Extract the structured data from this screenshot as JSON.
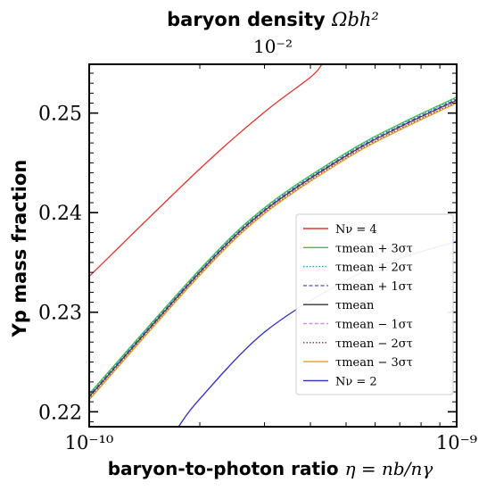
{
  "chart_data": {
    "type": "line",
    "top_title_text": "baryon density",
    "top_title_symbol": "Ωbh²",
    "top_axis_exponent": "10⁻²",
    "xlabel_text": "baryon-to-photon ratio",
    "xlabel_symbol": "η = nb/nγ",
    "ylabel": "Yp mass fraction",
    "x_scale": "log",
    "xlim": [
      1e-10,
      1e-09
    ],
    "ylim": [
      0.2185,
      0.2549
    ],
    "x_tick_labels": [
      {
        "value": 1e-10,
        "label": "10⁻¹⁰"
      },
      {
        "value": 1e-09,
        "label": "10⁻⁹"
      }
    ],
    "y_ticks": [
      0.22,
      0.23,
      0.24,
      0.25
    ],
    "y_tick_labels": [
      "0.22",
      "0.23",
      "0.24",
      "0.25"
    ],
    "legend_position": "lower-right",
    "series": [
      {
        "name": "Nν = 4",
        "color": "#e8312a",
        "dash": "solid",
        "x": [
          1e-10,
          2e-10,
          3e-10,
          4e-10,
          4.3e-10
        ],
        "y": [
          0.2336,
          0.2444,
          0.2501,
          0.2536,
          0.2549
        ]
      },
      {
        "name": "τmean + 3στ",
        "color": "#3cc23c",
        "dash": "solid",
        "x": [
          1e-10,
          2e-10,
          3e-10,
          5e-10,
          7e-10,
          1e-09
        ],
        "y": [
          0.2218,
          0.2343,
          0.2405,
          0.246,
          0.2489,
          0.2516
        ]
      },
      {
        "name": "τmean + 2στ",
        "color": "#1e9bd7",
        "dash": "dotted",
        "x": [
          1e-10,
          2e-10,
          3e-10,
          5e-10,
          7e-10,
          1e-09
        ],
        "y": [
          0.2217,
          0.2342,
          0.2404,
          0.2459,
          0.2488,
          0.2515
        ]
      },
      {
        "name": "τmean + 1στ",
        "color": "#6a5acd",
        "dash": "dashed",
        "x": [
          1e-10,
          2e-10,
          3e-10,
          5e-10,
          7e-10,
          1e-09
        ],
        "y": [
          0.2216,
          0.2341,
          0.2403,
          0.2458,
          0.2487,
          0.2514
        ]
      },
      {
        "name": "τmean",
        "color": "#333333",
        "dash": "solid",
        "x": [
          1e-10,
          2e-10,
          3e-10,
          5e-10,
          7e-10,
          1e-09
        ],
        "y": [
          0.2215,
          0.234,
          0.2402,
          0.2457,
          0.2486,
          0.2513
        ]
      },
      {
        "name": "τmean − 1στ",
        "color": "#dd88dd",
        "dash": "dashed",
        "x": [
          1e-10,
          2e-10,
          3e-10,
          5e-10,
          7e-10,
          1e-09
        ],
        "y": [
          0.2214,
          0.2339,
          0.2401,
          0.2456,
          0.2485,
          0.2512
        ]
      },
      {
        "name": "τmean − 2στ",
        "color": "#8b3a2a",
        "dash": "dotted",
        "x": [
          1e-10,
          2e-10,
          3e-10,
          5e-10,
          7e-10,
          1e-09
        ],
        "y": [
          0.2213,
          0.2338,
          0.24,
          0.2455,
          0.2484,
          0.2511
        ]
      },
      {
        "name": "τmean − 3στ",
        "color": "#e0a020",
        "dash": "solid",
        "x": [
          1e-10,
          2e-10,
          3e-10,
          5e-10,
          7e-10,
          1e-09
        ],
        "y": [
          0.2212,
          0.2337,
          0.2399,
          0.2454,
          0.2483,
          0.251
        ]
      },
      {
        "name": "Nν = 2",
        "color": "#2a2ad0",
        "dash": "solid",
        "x": [
          1.75e-10,
          2e-10,
          3e-10,
          5e-10,
          7e-10,
          1e-09
        ],
        "y": [
          0.2185,
          0.2213,
          0.228,
          0.2332,
          0.2354,
          0.2371
        ]
      }
    ]
  }
}
